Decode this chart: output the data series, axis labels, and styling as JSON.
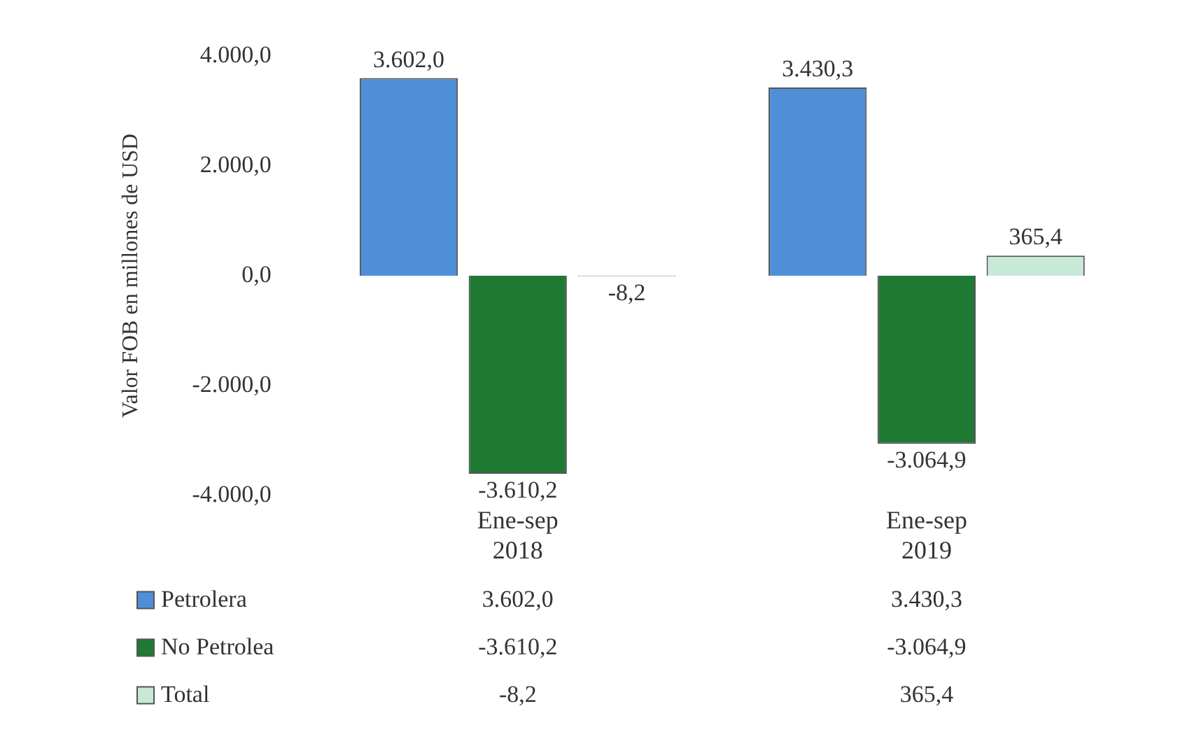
{
  "chart_data": {
    "type": "bar",
    "ylabel": "Valor FOB en millones de USD",
    "categories": [
      "Ene-sep 2018",
      "Ene-sep 2019"
    ],
    "series": [
      {
        "name": "Petrolera",
        "color": "#4f8fd8",
        "values": [
          3602.0,
          3430.3
        ],
        "value_labels": [
          "3.602,0",
          "3.430,3"
        ]
      },
      {
        "name": "No Petrolea",
        "color": "#1e7a33",
        "values": [
          -3610.2,
          -3064.9
        ],
        "value_labels": [
          "-3.610,2",
          "-3.064,9"
        ]
      },
      {
        "name": "Total",
        "color": "#c8e8d8",
        "values": [
          -8.2,
          365.4
        ],
        "value_labels": [
          "-8,2",
          "365,4"
        ]
      }
    ],
    "ylim": [
      -4000,
      4000
    ],
    "yticks": [
      {
        "value": 4000,
        "label": "4.000,0"
      },
      {
        "value": 2000,
        "label": "2.000,0"
      },
      {
        "value": 0,
        "label": "0,0"
      },
      {
        "value": -2000,
        "label": "-2.000,0"
      },
      {
        "value": -4000,
        "label": "-4.000,0"
      }
    ],
    "grid": false,
    "legend": "bottom"
  }
}
